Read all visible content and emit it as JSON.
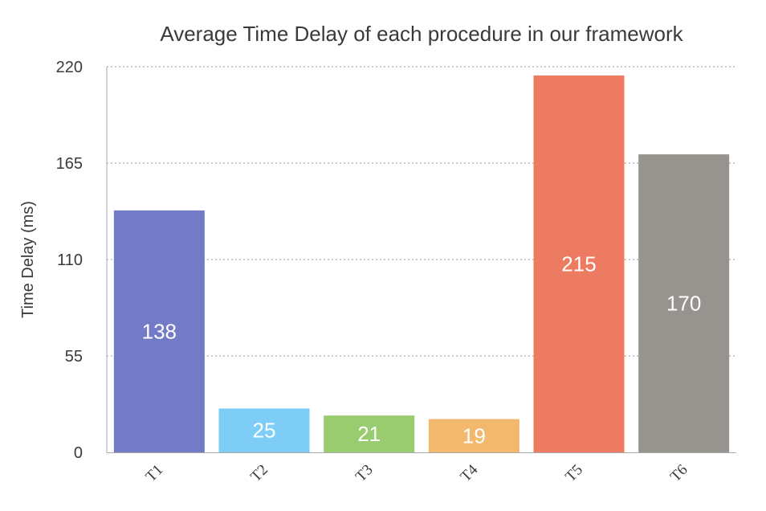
{
  "chart_data": {
    "type": "bar",
    "title": "Average Time Delay of each procedure in our framework",
    "xlabel": "",
    "ylabel": "Time Delay (ms)",
    "categories": [
      "T1",
      "T2",
      "T3",
      "T4",
      "T5",
      "T6"
    ],
    "values": [
      138,
      25,
      21,
      19,
      215,
      170
    ],
    "value_labels": [
      "138",
      "25",
      "21",
      "19",
      "215",
      "170"
    ],
    "colors": [
      "#737bc7",
      "#7ecdf7",
      "#99cc6f",
      "#f2b86e",
      "#ed7b61",
      "#97948f"
    ],
    "ylim": [
      0,
      220
    ],
    "yticks": [
      0,
      55,
      110,
      165,
      220
    ],
    "ytick_labels": [
      "0",
      "55",
      "110",
      "165",
      "220"
    ],
    "grid": true,
    "grid_style": "dotted",
    "legend": "none"
  }
}
